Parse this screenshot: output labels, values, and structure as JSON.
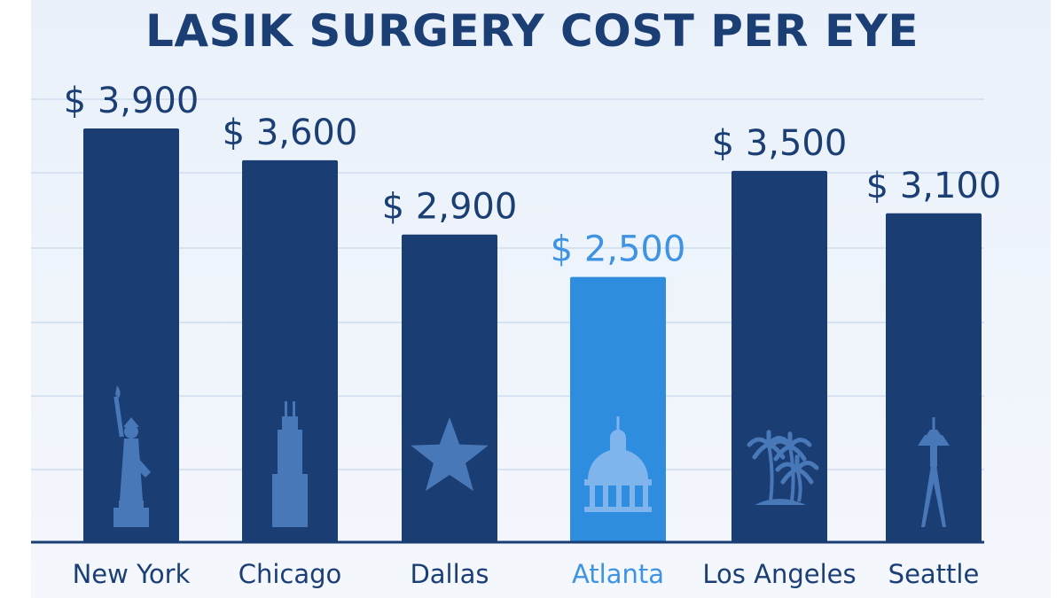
{
  "colors": {
    "bar": "#1a3d73",
    "highlight_bar": "#2f8de0",
    "highlight_text": "#3e93e3",
    "icon": "#4978b8",
    "highlight_icon": "#7fb4ec",
    "gridline": "#cfdcee",
    "axis": "#1a3d73",
    "text": "#1b3f75"
  },
  "chart_data": {
    "type": "bar",
    "title": "LASIK SURGERY COST PER EYE",
    "xlabel": "",
    "ylabel": "",
    "categories": [
      "New York",
      "Chicago",
      "Dallas",
      "Atlanta",
      "Los Angeles",
      "Seattle"
    ],
    "values": [
      3900,
      3600,
      2900,
      2500,
      3500,
      3100
    ],
    "value_labels": [
      "$ 3,900",
      "$ 3,600",
      "$ 2,900",
      "$ 2,500",
      "$ 3,500",
      "$ 3,100"
    ],
    "highlight": "Atlanta",
    "icons": [
      "statue-of-liberty-icon",
      "skyscraper-icon",
      "star-icon",
      "capitol-dome-icon",
      "palm-trees-icon",
      "space-needle-icon"
    ],
    "grid": true,
    "legend": "none"
  }
}
